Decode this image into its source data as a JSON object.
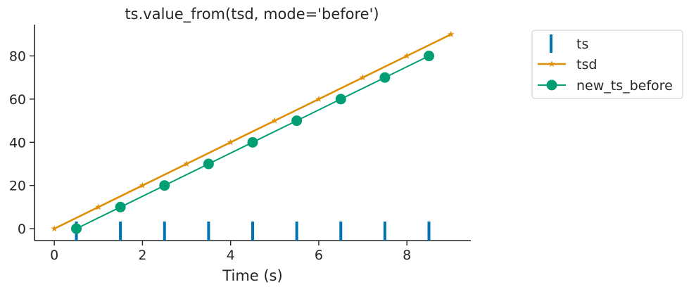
{
  "chart_data": {
    "type": "line",
    "title": "ts.value_from(tsd, mode='before')",
    "xlabel": "Time (s)",
    "ylabel": "",
    "xlim": [
      -0.45,
      9.45
    ],
    "ylim": [
      -5.5,
      94.5
    ],
    "xticks": [
      0,
      2,
      4,
      6,
      8
    ],
    "yticks": [
      0,
      20,
      40,
      60,
      80
    ],
    "grid": false,
    "legend_position": "outside-right-top",
    "series": [
      {
        "name": "ts",
        "kind": "event-ticks",
        "color": "#0173b2",
        "x": [
          0.5,
          1.5,
          2.5,
          3.5,
          4.5,
          5.5,
          6.5,
          7.5,
          8.5
        ]
      },
      {
        "name": "tsd",
        "kind": "line-star",
        "color": "#de8f05",
        "x": [
          0,
          1,
          2,
          3,
          4,
          5,
          6,
          7,
          8,
          9
        ],
        "y": [
          0,
          10,
          20,
          30,
          40,
          50,
          60,
          70,
          80,
          90
        ]
      },
      {
        "name": "new_ts_before",
        "kind": "line-circle",
        "color": "#029e73",
        "x": [
          0.5,
          1.5,
          2.5,
          3.5,
          4.5,
          5.5,
          6.5,
          7.5,
          8.5
        ],
        "y": [
          0,
          10,
          20,
          30,
          40,
          50,
          60,
          70,
          80
        ]
      }
    ]
  }
}
